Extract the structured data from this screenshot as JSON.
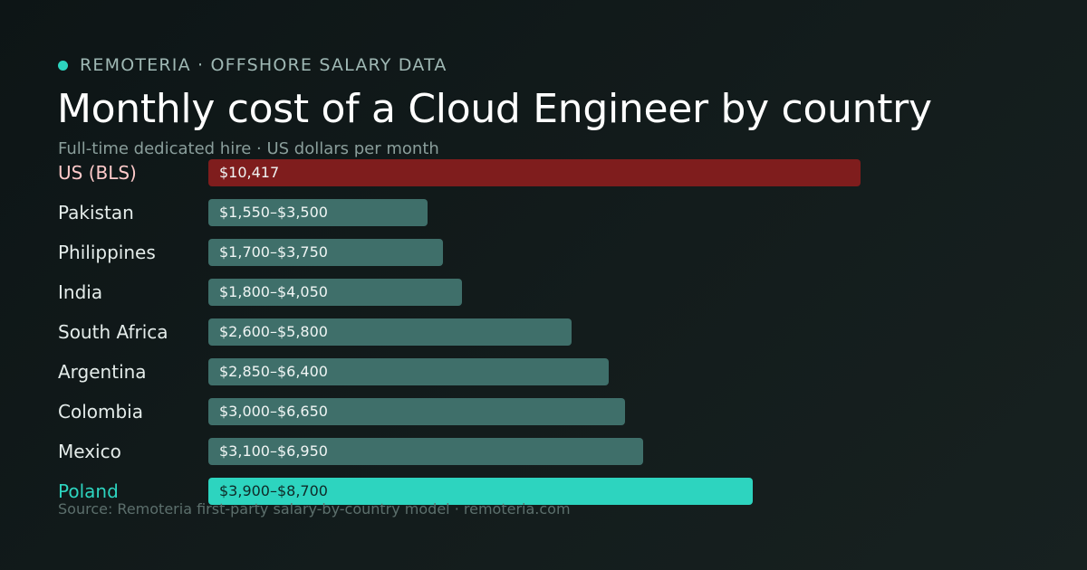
{
  "header": {
    "brand": "REMOTERIA · OFFSHORE SALARY DATA",
    "title": "Monthly cost of a Cloud Engineer by country",
    "subtitle": "Full-time dedicated hire · US dollars per month"
  },
  "footer": {
    "source": "Source: Remoteria first-party salary-by-country model · remoteria.com"
  },
  "colors": {
    "accent": "#2dd4bf",
    "baseline": "#7f1d1d",
    "baseline_label": "#fecaca",
    "default_bar": "#3f6f6a",
    "highlight_bar": "#2dd4bf",
    "highlight_label": "#2dd4bf"
  },
  "chart_data": {
    "type": "bar",
    "orientation": "horizontal",
    "unit": "US dollars per month",
    "categories": [
      "US (BLS)",
      "Pakistan",
      "Philippines",
      "India",
      "South Africa",
      "Argentina",
      "Colombia",
      "Mexico",
      "Poland"
    ],
    "series": [
      {
        "low": [
          10417,
          1550,
          1700,
          1800,
          2600,
          2850,
          3000,
          3100,
          3900
        ],
        "high": [
          10417,
          3500,
          3750,
          4050,
          5800,
          6400,
          6650,
          6950,
          8700
        ],
        "labels": [
          "$10,417",
          "$1,550–$3,500",
          "$1,700–$3,750",
          "$1,800–$4,050",
          "$2,600–$5,800",
          "$2,850–$6,400",
          "$3,000–$6,650",
          "$3,100–$6,950",
          "$3,900–$8,700"
        ]
      }
    ],
    "styles": [
      "baseline",
      "default",
      "default",
      "default",
      "default",
      "default",
      "default",
      "default",
      "highlight"
    ],
    "xlim": [
      0,
      10417
    ]
  }
}
